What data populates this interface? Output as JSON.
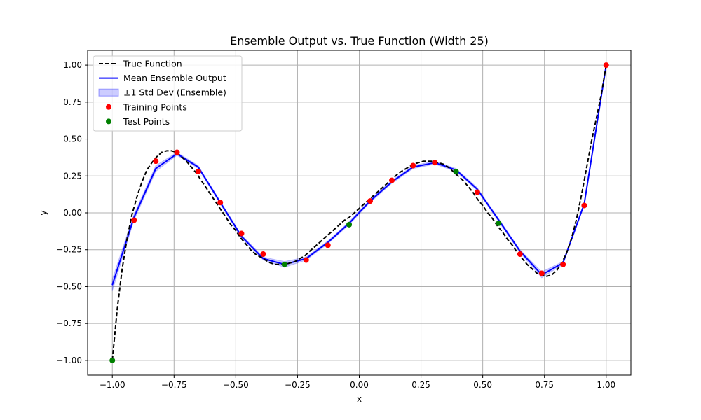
{
  "chart_data": {
    "type": "line",
    "title": "Ensemble Output vs. True Function (Width 25)",
    "xlabel": "x",
    "ylabel": "y",
    "xlim": [
      -1.1,
      1.1
    ],
    "ylim": [
      -1.1,
      1.1
    ],
    "xticks": [
      -1.0,
      -0.75,
      -0.5,
      -0.25,
      0.0,
      0.25,
      0.5,
      0.75,
      1.0
    ],
    "xtick_labels": [
      "−1.00",
      "−0.75",
      "−0.50",
      "−0.25",
      "0.00",
      "0.25",
      "0.50",
      "0.75",
      "1.00"
    ],
    "yticks": [
      -1.0,
      -0.75,
      -0.5,
      -0.25,
      0.0,
      0.25,
      0.5,
      0.75,
      1.0
    ],
    "ytick_labels": [
      "−1.00",
      "−0.75",
      "−0.50",
      "−0.25",
      "0.00",
      "0.25",
      "0.50",
      "0.75",
      "1.00"
    ],
    "grid": true,
    "legend_position": "top-left",
    "legend": [
      {
        "label": "True Function",
        "kind": "dashed-line",
        "color": "#000000"
      },
      {
        "label": "Mean Ensemble Output",
        "kind": "line",
        "color": "#0000ff"
      },
      {
        "label": "±1 Std Dev (Ensemble)",
        "kind": "band",
        "color": "#0000ff"
      },
      {
        "label": "Training Points",
        "kind": "marker",
        "color": "#ff0000"
      },
      {
        "label": "Test Points",
        "kind": "marker",
        "color": "#008000"
      }
    ],
    "series": [
      {
        "name": "True Function",
        "style": "dashed",
        "color": "#000000",
        "x": [
          -1.0,
          -0.98,
          -0.96,
          -0.94,
          -0.92,
          -0.9,
          -0.88,
          -0.86,
          -0.84,
          -0.82,
          -0.8,
          -0.78,
          -0.76,
          -0.74,
          -0.72,
          -0.7,
          -0.68,
          -0.66,
          -0.64,
          -0.62,
          -0.6,
          -0.58,
          -0.56,
          -0.54,
          -0.52,
          -0.5,
          -0.48,
          -0.46,
          -0.44,
          -0.42,
          -0.4,
          -0.38,
          -0.36,
          -0.34,
          -0.32,
          -0.3,
          -0.28,
          -0.26,
          -0.24,
          -0.22,
          -0.2,
          -0.18,
          -0.16,
          -0.14,
          -0.12,
          -0.1,
          -0.08,
          -0.06,
          -0.04,
          -0.02,
          0.0,
          0.02,
          0.04,
          0.06,
          0.08,
          0.1,
          0.12,
          0.14,
          0.16,
          0.18,
          0.2,
          0.22,
          0.24,
          0.26,
          0.28,
          0.3,
          0.32,
          0.34,
          0.36,
          0.38,
          0.4,
          0.42,
          0.44,
          0.46,
          0.48,
          0.5,
          0.52,
          0.54,
          0.56,
          0.58,
          0.6,
          0.62,
          0.64,
          0.66,
          0.68,
          0.7,
          0.72,
          0.74,
          0.76,
          0.78,
          0.8,
          0.82,
          0.84,
          0.86,
          0.88,
          0.9,
          0.92,
          0.94,
          0.96,
          0.98,
          1.0
        ],
        "y": [
          -1.0,
          -0.65,
          -0.38,
          -0.17,
          -0.01,
          0.11,
          0.21,
          0.29,
          0.34,
          0.38,
          0.41,
          0.42,
          0.42,
          0.41,
          0.38,
          0.35,
          0.31,
          0.27,
          0.22,
          0.17,
          0.12,
          0.07,
          0.02,
          -0.03,
          -0.08,
          -0.12,
          -0.17,
          -0.21,
          -0.25,
          -0.28,
          -0.3,
          -0.32,
          -0.34,
          -0.35,
          -0.35,
          -0.35,
          -0.34,
          -0.33,
          -0.31,
          -0.29,
          -0.26,
          -0.23,
          -0.2,
          -0.17,
          -0.14,
          -0.11,
          -0.08,
          -0.05,
          -0.03,
          0.0,
          0.03,
          0.06,
          0.09,
          0.12,
          0.15,
          0.18,
          0.21,
          0.24,
          0.27,
          0.29,
          0.31,
          0.33,
          0.34,
          0.35,
          0.35,
          0.35,
          0.34,
          0.33,
          0.31,
          0.28,
          0.25,
          0.22,
          0.18,
          0.14,
          0.09,
          0.05,
          0.0,
          -0.04,
          -0.09,
          -0.13,
          -0.18,
          -0.22,
          -0.27,
          -0.31,
          -0.35,
          -0.38,
          -0.41,
          -0.42,
          -0.43,
          -0.42,
          -0.39,
          -0.34,
          -0.27,
          -0.17,
          -0.04,
          0.12,
          0.3,
          0.48,
          0.64,
          0.8,
          1.0
        ]
      },
      {
        "name": "Mean Ensemble Output",
        "style": "solid",
        "color": "#0000ff",
        "x": [
          -1.0,
          -0.912,
          -0.824,
          -0.738,
          -0.652,
          -0.563,
          -0.477,
          -0.389,
          -0.303,
          -0.215,
          -0.127,
          -0.041,
          0.044,
          0.132,
          0.218,
          0.306,
          0.392,
          0.478,
          0.565,
          0.651,
          0.739,
          0.825,
          0.911,
          1.0
        ],
        "y": [
          -0.49,
          -0.03,
          0.3,
          0.4,
          0.31,
          0.07,
          -0.16,
          -0.31,
          -0.35,
          -0.31,
          -0.2,
          -0.07,
          0.08,
          0.21,
          0.31,
          0.34,
          0.29,
          0.16,
          -0.05,
          -0.26,
          -0.42,
          -0.34,
          0.06,
          1.0
        ],
        "std": [
          0.04,
          0.02,
          0.02,
          0.01,
          0.01,
          0.01,
          0.01,
          0.01,
          0.02,
          0.01,
          0.01,
          0.01,
          0.01,
          0.01,
          0.01,
          0.01,
          0.01,
          0.01,
          0.01,
          0.01,
          0.02,
          0.01,
          0.01,
          0.0
        ]
      }
    ],
    "training_points": {
      "name": "Training Points",
      "color": "#ff0000",
      "x": [
        -0.912,
        -0.824,
        -0.738,
        -0.652,
        -0.563,
        -0.477,
        -0.389,
        -0.215,
        -0.127,
        0.044,
        0.132,
        0.218,
        0.306,
        0.478,
        0.651,
        0.739,
        0.825,
        0.911,
        1.0
      ],
      "y": [
        -0.05,
        0.35,
        0.41,
        0.28,
        0.07,
        -0.14,
        -0.28,
        -0.32,
        -0.22,
        0.08,
        0.22,
        0.32,
        0.34,
        0.14,
        -0.28,
        -0.41,
        -0.35,
        0.05,
        1.0
      ]
    },
    "test_points": {
      "name": "Test Points",
      "color": "#008000",
      "x": [
        -1.0,
        -0.303,
        -0.041,
        0.392,
        0.565
      ],
      "y": [
        -1.0,
        -0.35,
        -0.08,
        0.28,
        -0.07
      ]
    }
  }
}
